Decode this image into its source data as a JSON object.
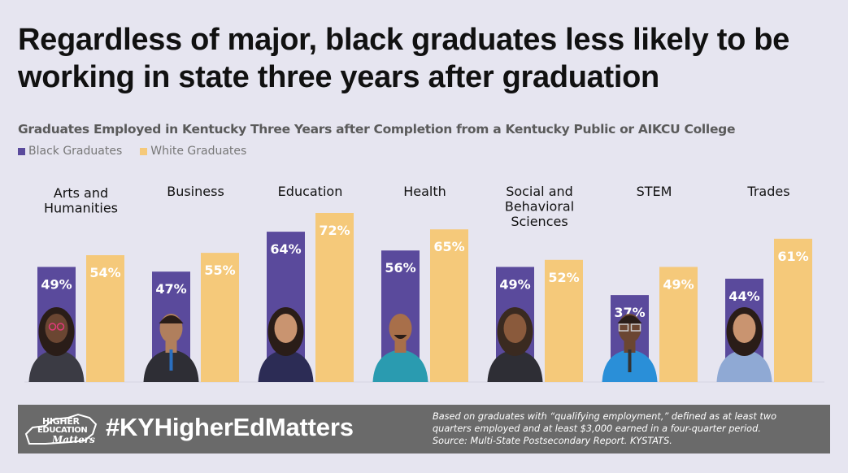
{
  "title": "Regardless of major, black graduates less likely to be working in state three years after graduation",
  "colors": {
    "black": "#5a4a9c",
    "white": "#f5c97a",
    "background": "#e6e5f0",
    "footer": "#6a6a6a"
  },
  "chart_data": {
    "type": "bar",
    "subtitle": "Graduates Employed in Kentucky Three Years after Completion from a Kentucky Public or AIKCU College",
    "categories": [
      [
        "Arts and",
        "Humanities"
      ],
      [
        "Business"
      ],
      [
        "Education"
      ],
      [
        "Health"
      ],
      [
        "Social and",
        "Behavioral",
        "Sciences"
      ],
      [
        "STEM"
      ],
      [
        "Trades"
      ]
    ],
    "series": [
      {
        "name": "Black Graduates",
        "values": [
          49,
          47,
          64,
          56,
          49,
          37,
          44
        ],
        "color": "#5a4a9c"
      },
      {
        "name": "White Graduates",
        "values": [
          54,
          55,
          72,
          65,
          52,
          49,
          61
        ],
        "color": "#f5c97a"
      }
    ],
    "value_format": "{v}%",
    "legend": "top-left",
    "grid": false,
    "ylim": [
      0,
      100
    ]
  },
  "footer": {
    "hashtag": "#KYHigherEdMatters",
    "logo": {
      "line1": "HIGHER",
      "line2": "EDUCATION",
      "line3": "Matters"
    },
    "note_lines": [
      "Based on graduates with “qualifying employment,” defined as at least two",
      "quarters employed and at least $3,000 earned in a four-quarter period.",
      "Source: Multi-State Postsecondary Report. KYSTATS."
    ]
  }
}
